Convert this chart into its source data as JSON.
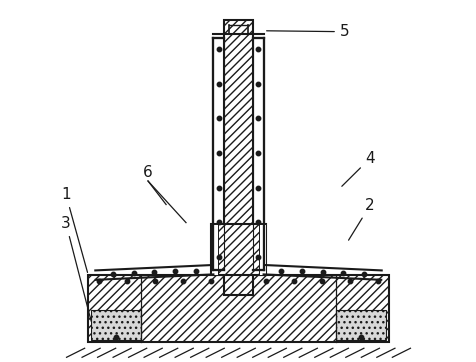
{
  "lc": "#1a1a1a",
  "lw": 1.5,
  "label_fs": 11,
  "bg": "white"
}
